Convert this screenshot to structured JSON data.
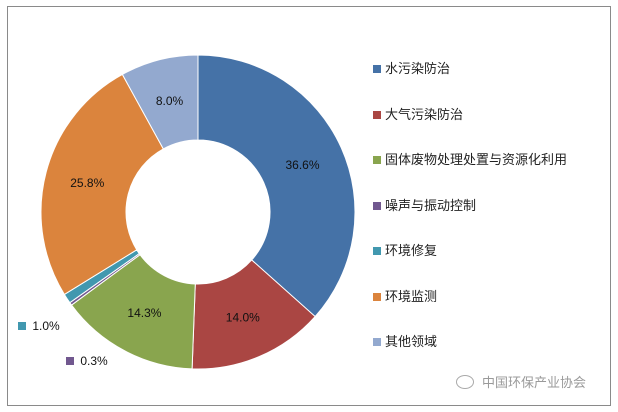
{
  "chart_data": {
    "type": "pie",
    "donut": true,
    "categories": [
      "水污染防治",
      "大气污染防治",
      "固体废物处理处置与资源化利用",
      "噪声与振动控制",
      "环境修复",
      "环境监测",
      "其他领域"
    ],
    "values": [
      36.6,
      14.0,
      14.3,
      0.3,
      1.0,
      25.8,
      8.0
    ],
    "data_labels": [
      "36.6%",
      "14.0%",
      "14.3%",
      "0.3%",
      "1.0%",
      "25.8%",
      "8.0%"
    ],
    "colors": [
      "#4572A7",
      "#AA4643",
      "#89A54E",
      "#71588F",
      "#4198AF",
      "#DB843D",
      "#93A9CF"
    ],
    "legend_position": "right",
    "start_angle": "top",
    "direction": "clockwise"
  },
  "watermark": "中国环保产业协会"
}
